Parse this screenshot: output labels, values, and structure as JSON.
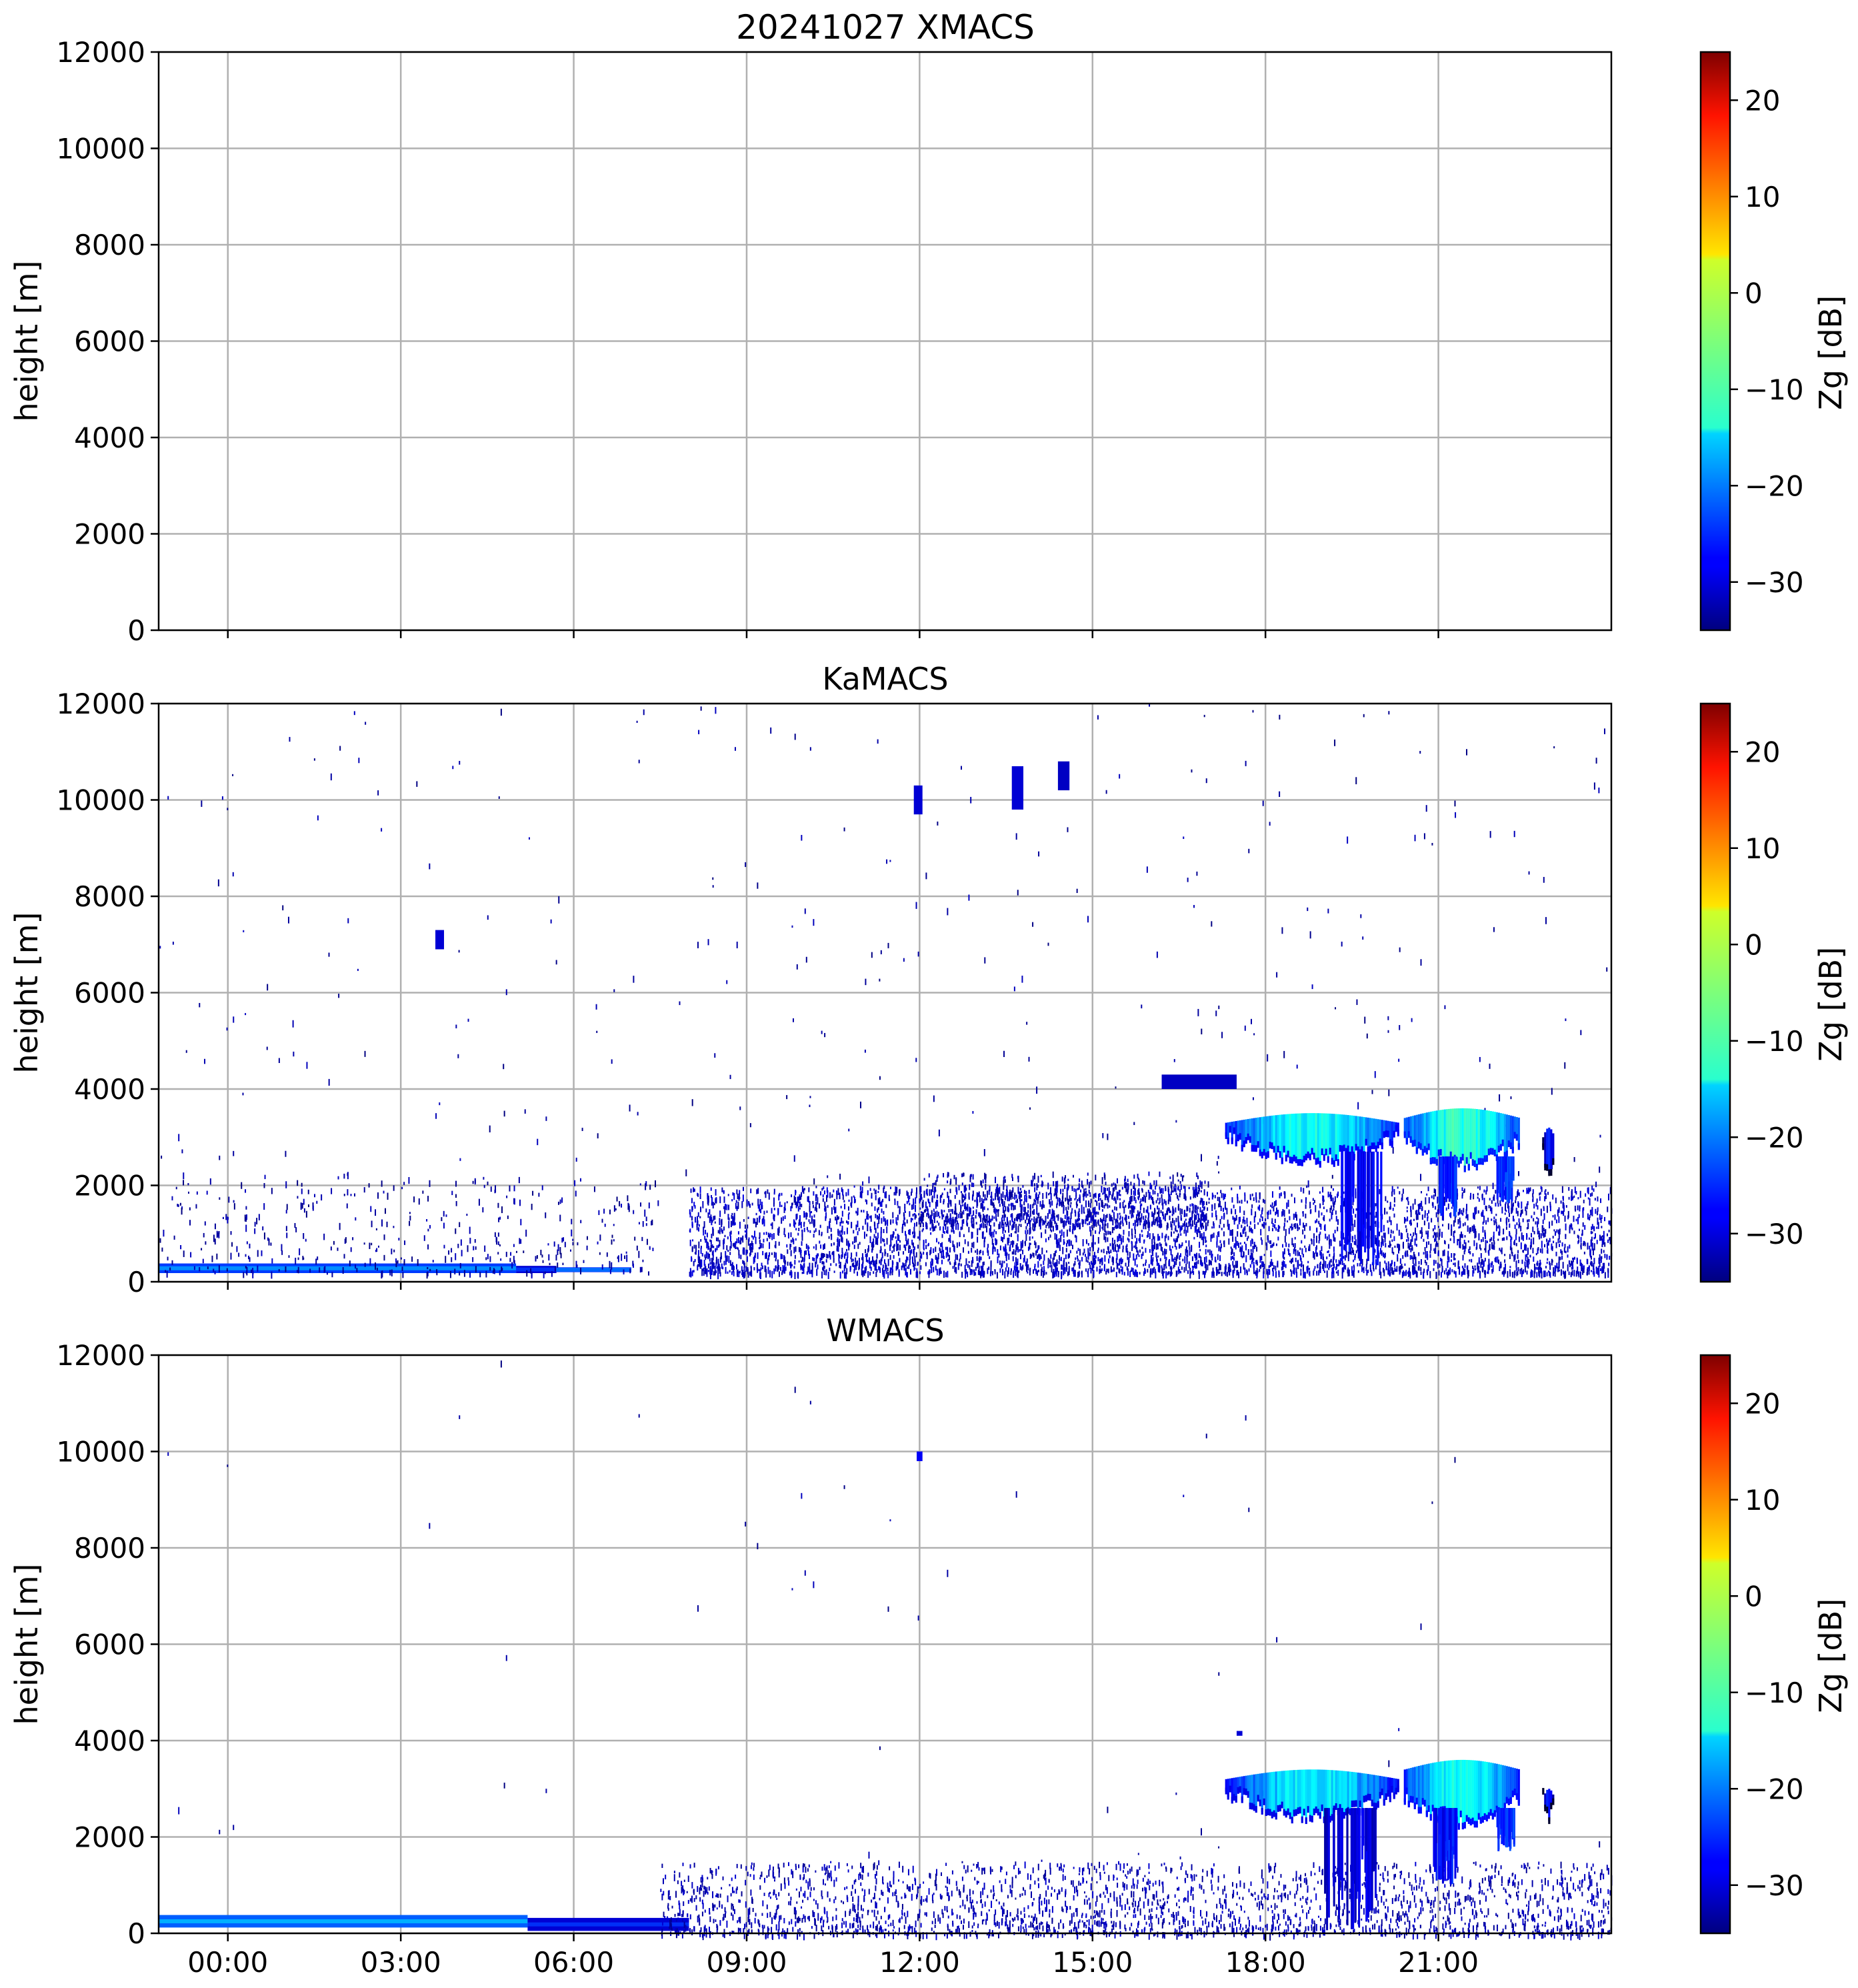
{
  "chart_data": [
    {
      "type": "heatmap",
      "title": "20241027 XMACS",
      "xlabel": "",
      "ylabel": "height [m]",
      "colorbar_label": "Zg [dB]",
      "colorbar_ticks": [
        20,
        10,
        0,
        -10,
        -20,
        -30
      ],
      "colorbar_range": [
        -35,
        25
      ],
      "xlim_hours": [
        -1.2,
        24.0
      ],
      "ylim": [
        0,
        12000
      ],
      "yticks": [
        0,
        2000,
        4000,
        6000,
        8000,
        10000,
        12000
      ],
      "xticks": [
        "00:00",
        "03:00",
        "06:00",
        "09:00",
        "12:00",
        "15:00",
        "18:00",
        "21:00"
      ],
      "xticks_hours": [
        0,
        3,
        6,
        9,
        12,
        15,
        18,
        21
      ],
      "show_xtick_labels": false,
      "grid": true,
      "features": []
    },
    {
      "type": "heatmap",
      "title": "KaMACS",
      "xlabel": "",
      "ylabel": "height [m]",
      "colorbar_label": "Zg [dB]",
      "colorbar_ticks": [
        20,
        10,
        0,
        -10,
        -20,
        -30
      ],
      "colorbar_range": [
        -35,
        25
      ],
      "xlim_hours": [
        -1.2,
        24.0
      ],
      "ylim": [
        0,
        12000
      ],
      "yticks": [
        0,
        2000,
        4000,
        6000,
        8000,
        10000,
        12000
      ],
      "xticks": [
        "00:00",
        "03:00",
        "06:00",
        "09:00",
        "12:00",
        "15:00",
        "18:00",
        "21:00"
      ],
      "xticks_hours": [
        0,
        3,
        6,
        9,
        12,
        15,
        18,
        21
      ],
      "show_xtick_labels": false,
      "grid": true,
      "features": [
        {
          "kind": "layer",
          "t0": -1.2,
          "t1": 5.0,
          "h0": 180,
          "h1": 380,
          "z": -24
        },
        {
          "kind": "layer",
          "t0": 5.0,
          "t1": 5.7,
          "h0": 180,
          "h1": 330,
          "z": -30
        },
        {
          "kind": "layer",
          "t0": 5.7,
          "t1": 7.0,
          "h0": 200,
          "h1": 300,
          "z": -26
        },
        {
          "kind": "speckle",
          "t0": -1.2,
          "t1": 7.5,
          "h0": 200,
          "h1": 2200,
          "density": 0.08,
          "z": -33
        },
        {
          "kind": "speckle",
          "t0": 8.0,
          "t1": 24.0,
          "h0": 200,
          "h1": 2000,
          "density": 0.5,
          "z": -31
        },
        {
          "kind": "speckle",
          "t0": 12.0,
          "t1": 17.0,
          "h0": 1200,
          "h1": 2300,
          "density": 0.4,
          "z": -32
        },
        {
          "kind": "speckle",
          "t0": -1.2,
          "t1": 24.0,
          "h0": 2000,
          "h1": 12000,
          "density": 0.004,
          "z": -33
        },
        {
          "kind": "patch",
          "t0": 3.6,
          "t1": 3.75,
          "h0": 6900,
          "h1": 7300,
          "z": -30
        },
        {
          "kind": "patch",
          "t0": 11.9,
          "t1": 12.05,
          "h0": 9700,
          "h1": 10300,
          "z": -30
        },
        {
          "kind": "patch",
          "t0": 13.6,
          "t1": 13.8,
          "h0": 9800,
          "h1": 10700,
          "z": -30
        },
        {
          "kind": "patch",
          "t0": 14.4,
          "t1": 14.6,
          "h0": 10200,
          "h1": 10800,
          "z": -31
        },
        {
          "kind": "patch",
          "t0": 16.2,
          "t1": 17.5,
          "h0": 4000,
          "h1": 4300,
          "z": -31
        },
        {
          "kind": "cloud",
          "t0": 17.3,
          "t1": 20.3,
          "h0": 2700,
          "h1": 3500,
          "z": -14
        },
        {
          "kind": "cloud",
          "t0": 20.4,
          "t1": 22.4,
          "h0": 2600,
          "h1": 3600,
          "z": -12
        },
        {
          "kind": "cloud",
          "t0": 22.8,
          "t1": 23.0,
          "h0": 2400,
          "h1": 3200,
          "z": -26
        },
        {
          "kind": "fallstreak",
          "t0": 19.3,
          "t1": 20.0,
          "h0": 300,
          "h1": 2700,
          "z": -28
        },
        {
          "kind": "fallstreak",
          "t0": 21.0,
          "t1": 21.3,
          "h0": 1300,
          "h1": 2600,
          "z": -26
        },
        {
          "kind": "fallstreak",
          "t0": 22.0,
          "t1": 22.3,
          "h0": 1600,
          "h1": 2600,
          "z": -25
        }
      ]
    },
    {
      "type": "heatmap",
      "title": "WMACS",
      "xlabel": "",
      "ylabel": "height [m]",
      "colorbar_label": "Zg [dB]",
      "colorbar_ticks": [
        20,
        10,
        0,
        -10,
        -20,
        -30
      ],
      "colorbar_range": [
        -35,
        25
      ],
      "xlim_hours": [
        -1.2,
        24.0
      ],
      "ylim": [
        0,
        12000
      ],
      "yticks": [
        0,
        2000,
        4000,
        6000,
        8000,
        10000,
        12000
      ],
      "xticks": [
        "00:00",
        "03:00",
        "06:00",
        "09:00",
        "12:00",
        "15:00",
        "18:00",
        "21:00"
      ],
      "xticks_hours": [
        0,
        3,
        6,
        9,
        12,
        15,
        18,
        21
      ],
      "show_xtick_labels": true,
      "grid": true,
      "features": [
        {
          "kind": "layer",
          "t0": -1.2,
          "t1": 5.2,
          "h0": 120,
          "h1": 380,
          "z": -22
        },
        {
          "kind": "layer",
          "t0": 5.2,
          "t1": 8.0,
          "h0": 50,
          "h1": 320,
          "z": -30
        },
        {
          "kind": "speckle",
          "t0": 7.5,
          "t1": 24.0,
          "h0": 0,
          "h1": 1500,
          "density": 0.3,
          "z": -32
        },
        {
          "kind": "speckle",
          "t0": -1.2,
          "t1": 24.0,
          "h0": 1500,
          "h1": 12000,
          "density": 0.0006,
          "z": -33
        },
        {
          "kind": "patch",
          "t0": 11.95,
          "t1": 12.05,
          "h0": 9800,
          "h1": 10000,
          "z": -28
        },
        {
          "kind": "patch",
          "t0": 17.5,
          "t1": 17.6,
          "h0": 4100,
          "h1": 4200,
          "z": -30
        },
        {
          "kind": "cloud",
          "t0": 17.3,
          "t1": 20.3,
          "h0": 2600,
          "h1": 3400,
          "z": -15
        },
        {
          "kind": "cloud",
          "t0": 20.4,
          "t1": 22.4,
          "h0": 2500,
          "h1": 3600,
          "z": -13
        },
        {
          "kind": "cloud",
          "t0": 22.8,
          "t1": 23.0,
          "h0": 2600,
          "h1": 3000,
          "z": -26
        },
        {
          "kind": "fallstreak",
          "t0": 19.0,
          "t1": 19.9,
          "h0": 50,
          "h1": 2600,
          "z": -30
        },
        {
          "kind": "fallstreak",
          "t0": 20.9,
          "t1": 21.3,
          "h0": 1000,
          "h1": 2600,
          "z": -27
        },
        {
          "kind": "fallstreak",
          "t0": 22.0,
          "t1": 22.3,
          "h0": 1700,
          "h1": 2600,
          "z": -25
        }
      ]
    }
  ]
}
